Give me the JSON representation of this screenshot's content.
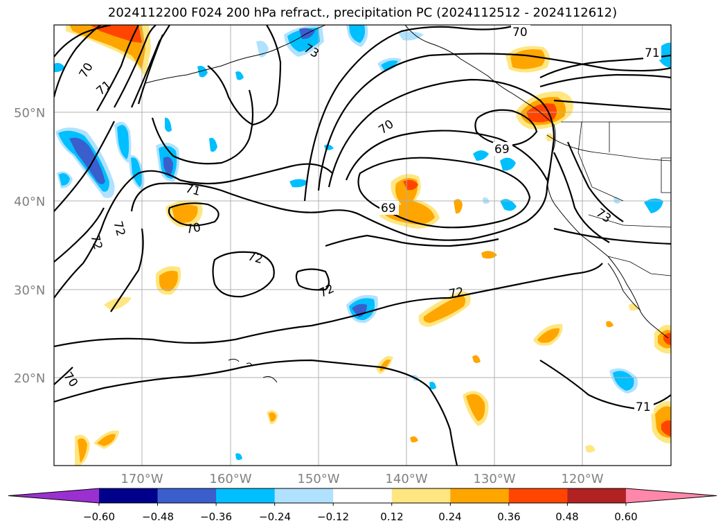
{
  "title": "2024112200 F024 200 hPa refract., precipitation PC (2024112512 - 2024112612)",
  "map": {
    "lat_labels": [
      "50°N",
      "40°N",
      "30°N",
      "20°N"
    ],
    "lon_labels": [
      "170°W",
      "160°W",
      "150°W",
      "140°W",
      "130°W",
      "120°W"
    ]
  },
  "contour_labels": [
    "70",
    "71",
    "73",
    "70",
    "71",
    "70",
    "69",
    "71",
    "70",
    "72",
    "72",
    "72",
    "69",
    "72",
    "72",
    "73",
    "70",
    "71"
  ],
  "colorbar": {
    "ticks": [
      "−0.60",
      "−0.48",
      "−0.36",
      "−0.24",
      "−0.12",
      "0.12",
      "0.24",
      "0.36",
      "0.48",
      "0.60"
    ],
    "colors": [
      "#9b30d0",
      "#00008b",
      "#3a5fcd",
      "#00bfff",
      "#b0e2ff",
      "#ffffff",
      "#ffe680",
      "#ffa500",
      "#ff4500",
      "#b22222",
      "#ff88aa"
    ]
  }
}
